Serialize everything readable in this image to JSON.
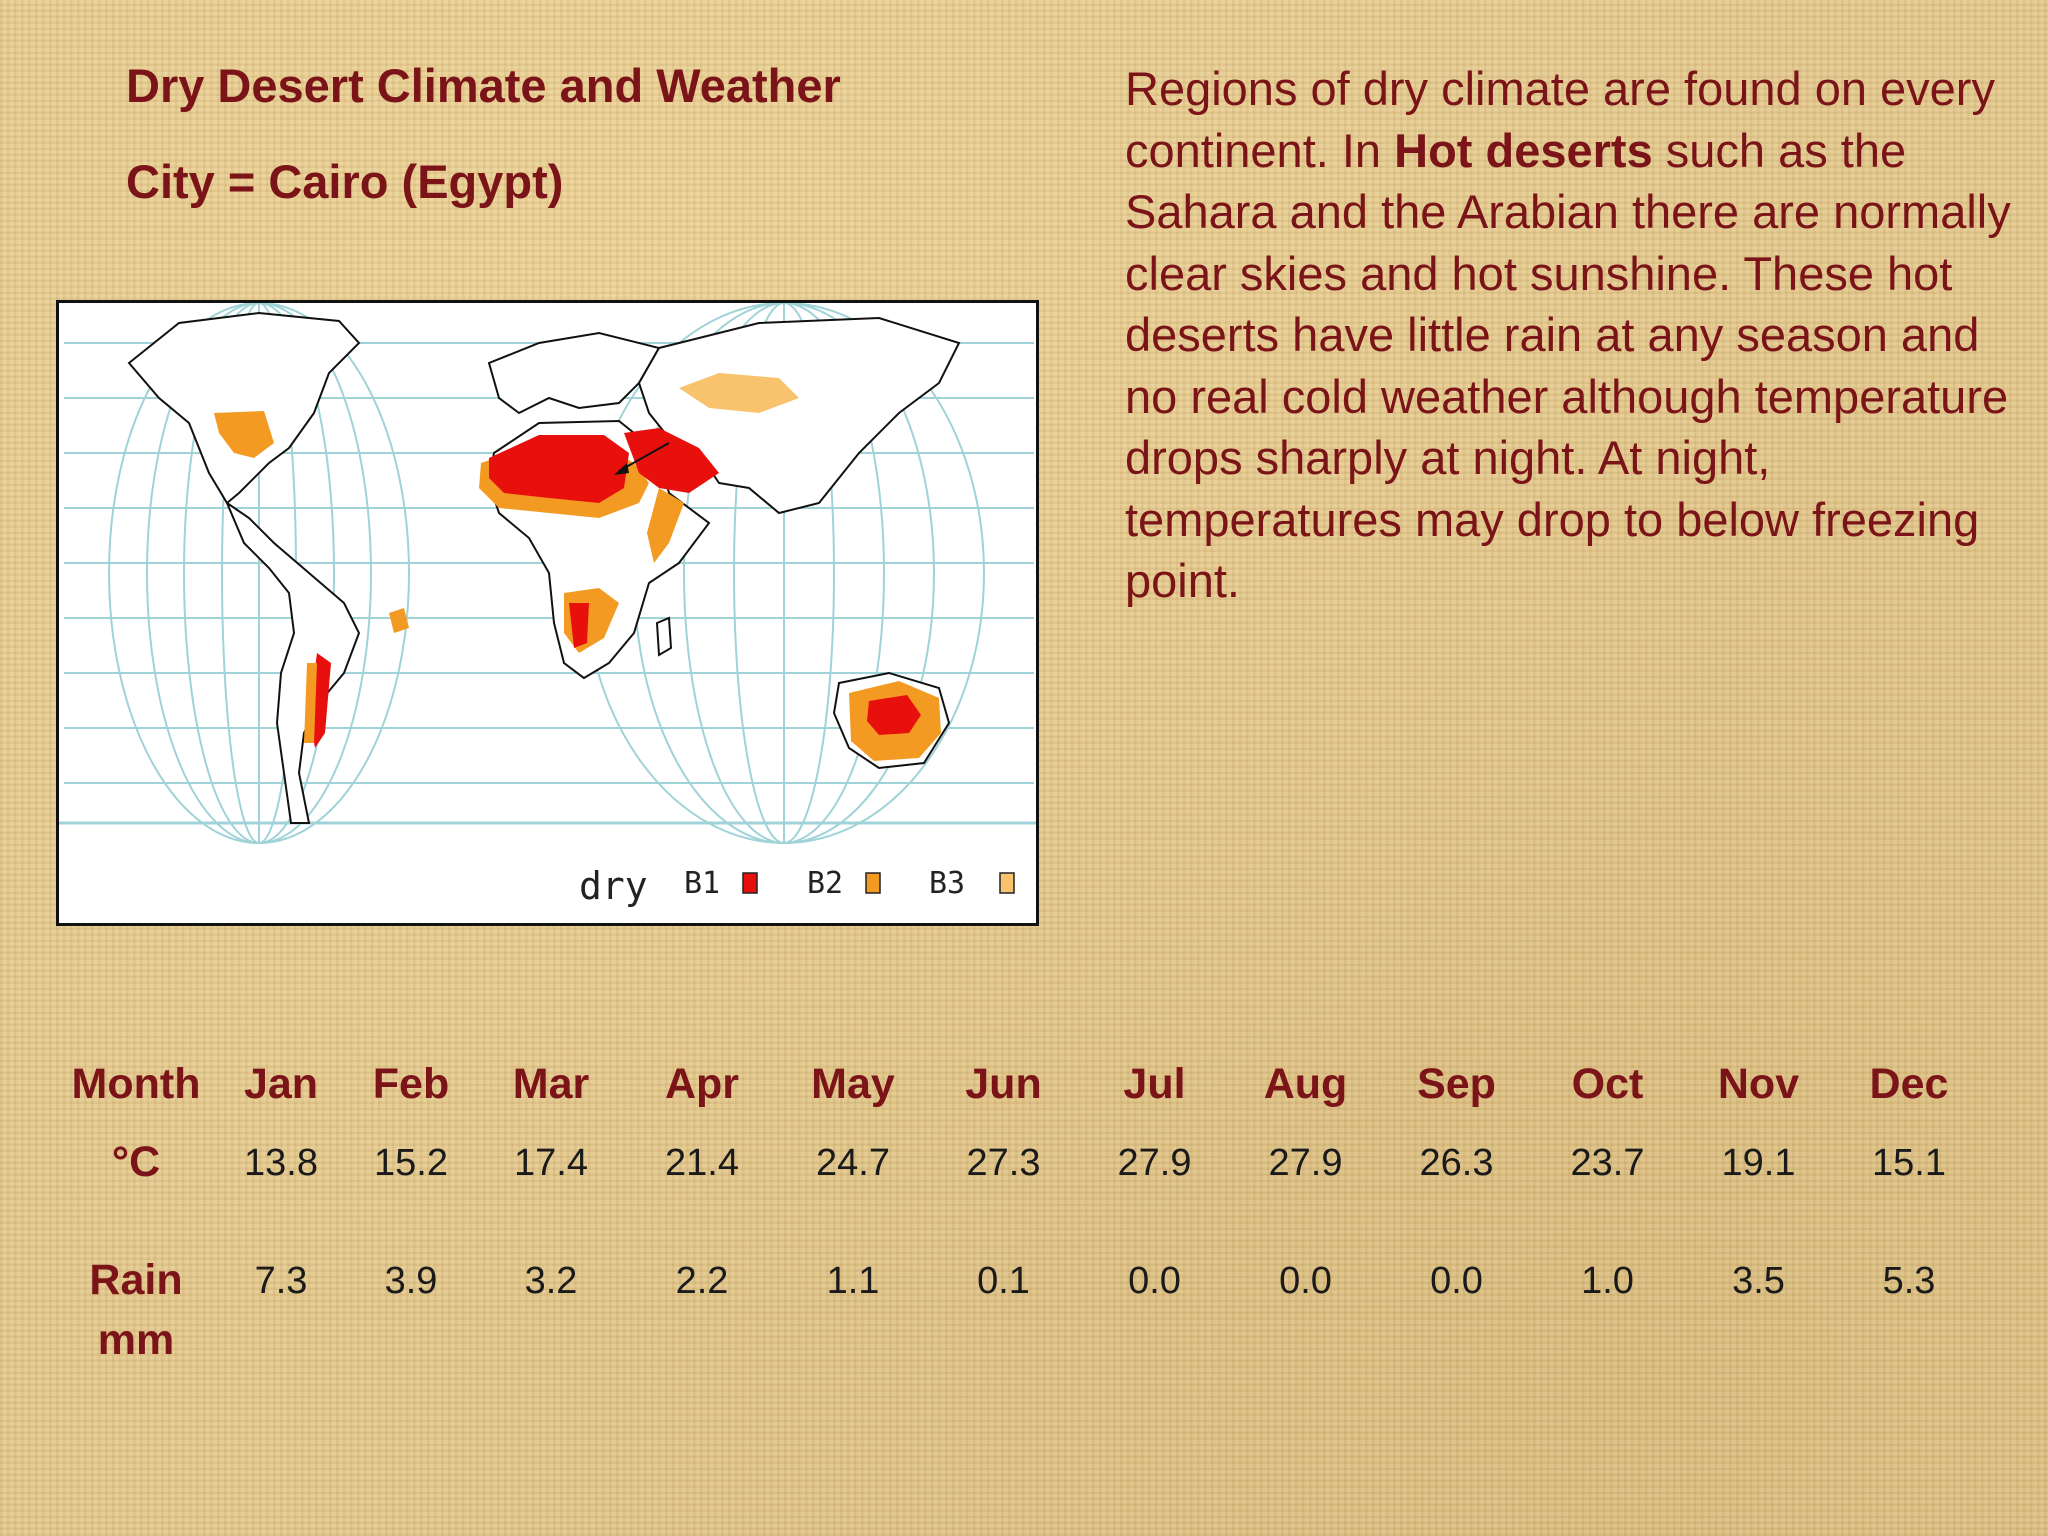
{
  "heading": {
    "title": "Dry Desert Climate and Weather",
    "subtitle": "City = Cairo (Egypt)"
  },
  "description": {
    "part1": "Regions of dry climate are found on every continent.  In ",
    "bold": "Hot deserts",
    "part2": " such as the Sahara and the Arabian there are normally clear skies and hot sunshine. These hot deserts have little rain at any season and no real cold weather although temperature drops sharply at night. At night, temperatures may drop to below freezing point."
  },
  "map": {
    "legend_title": "dry",
    "legend": [
      {
        "label": "B1",
        "color": "#e8100c"
      },
      {
        "label": "B2",
        "color": "#f39a22"
      },
      {
        "label": "B3",
        "color": "#f8c36c"
      }
    ]
  },
  "table": {
    "month_label": "Month",
    "temp_label": "°C",
    "rain_label_1": "Rain",
    "rain_label_2": "mm",
    "months": [
      "Jan",
      "Feb",
      "Mar",
      "Apr",
      "May",
      "Jun",
      "Jul",
      "Aug",
      "Sep",
      "Oct",
      "Nov",
      "Dec"
    ],
    "temperature": [
      "13.8",
      "15.2",
      "17.4",
      "21.4",
      "24.7",
      "27.3",
      "27.9",
      "27.9",
      "26.3",
      "23.7",
      "19.1",
      "15.1"
    ],
    "rain": [
      "7.3",
      "3.9",
      "3.2",
      "2.2",
      "1.1",
      "0.1",
      "0.0",
      "0.0",
      "0.0",
      "1.0",
      "3.5",
      "5.3"
    ]
  }
}
